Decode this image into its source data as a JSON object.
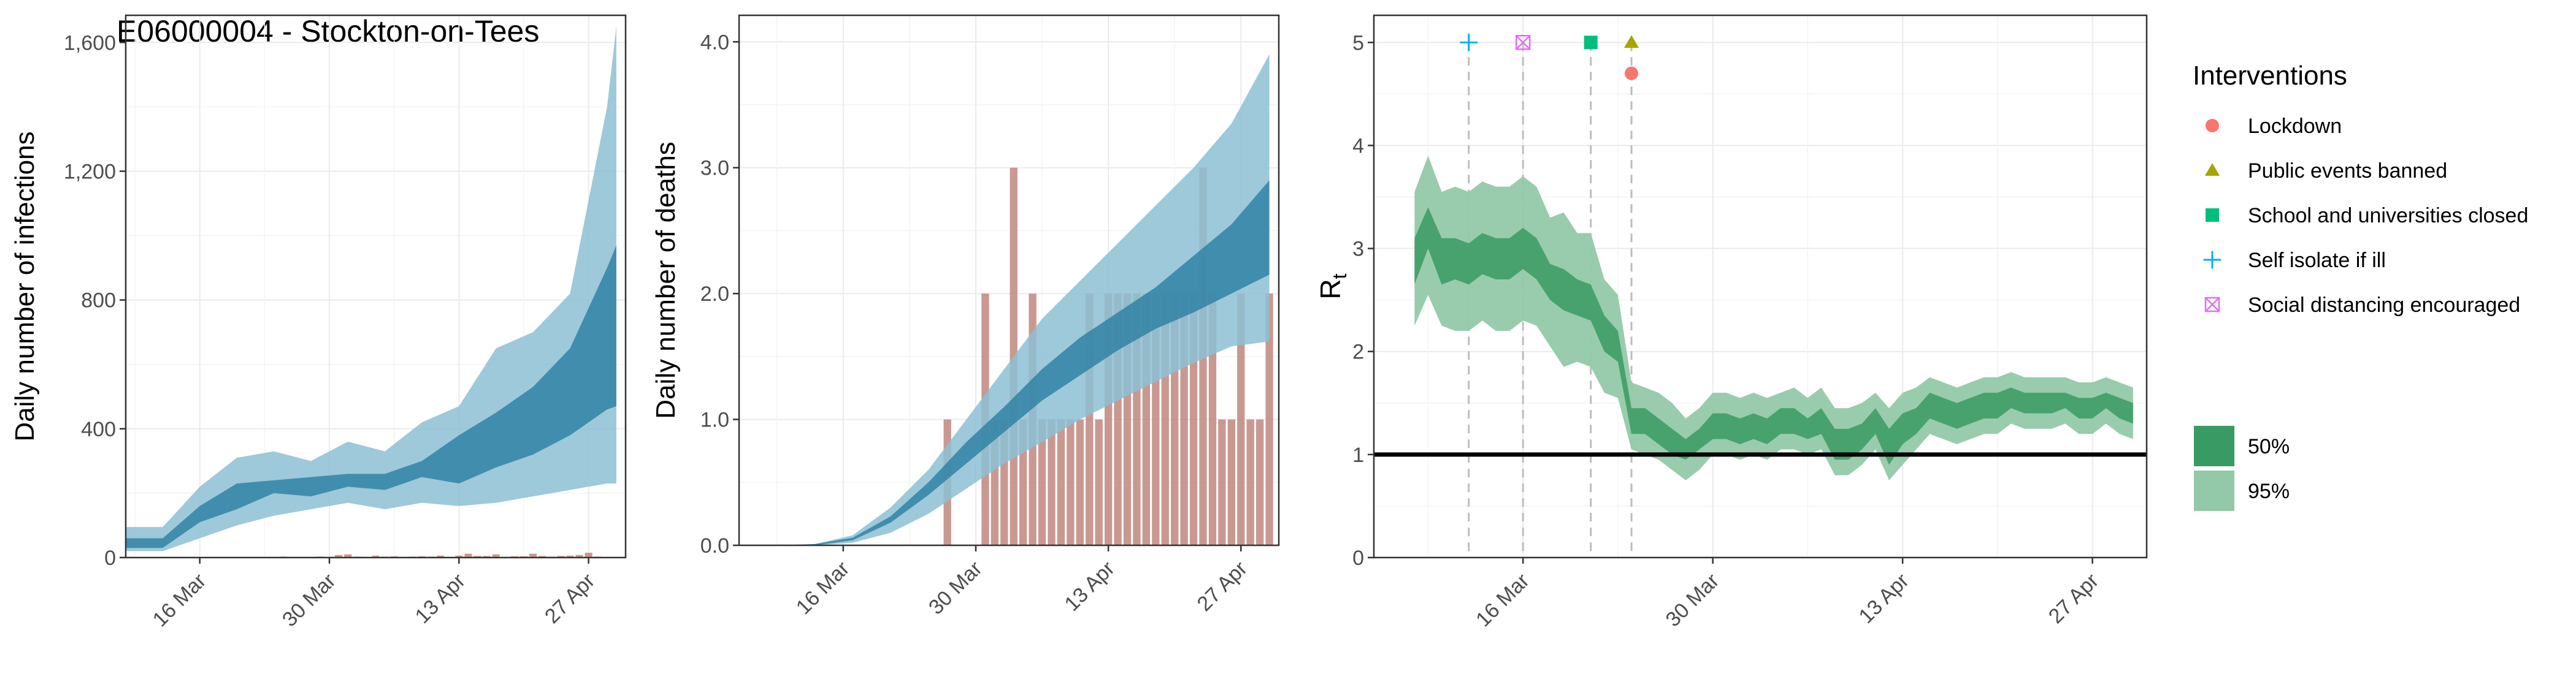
{
  "title": "E06000004 - Stockton-on-Tees",
  "colors": {
    "inner_band": "#2b7ea1",
    "outer_band": "#8cbfd3",
    "bars": "#c0877e",
    "rt_inner": "#3a9a63",
    "rt_outer": "#93c9a8",
    "lockdown": "#f8766d",
    "public_events": "#a3a500",
    "school": "#00bf7d",
    "self_isolate": "#00b0f6",
    "social_distancing": "#e76bf3"
  },
  "chart_data": [
    {
      "type": "area",
      "name": "infections",
      "ylabel": "Daily number of infections",
      "xlabel": "",
      "xlim": [
        "2020-03-08",
        "2020-05-01"
      ],
      "ylim": [
        0,
        1600
      ],
      "yticks": [
        0,
        400,
        800,
        1200,
        1600
      ],
      "ytick_labels": [
        "0",
        "400",
        "800",
        "1,200",
        "1,600"
      ],
      "xticks": [
        "2020-03-16",
        "2020-03-30",
        "2020-04-13",
        "2020-04-27"
      ],
      "xtick_labels": [
        "16 Mar",
        "30 Mar",
        "13 Apr",
        "27 Apr"
      ],
      "grid": true,
      "x": [
        "2020-03-08",
        "2020-03-12",
        "2020-03-16",
        "2020-03-20",
        "2020-03-24",
        "2020-03-28",
        "2020-04-01",
        "2020-04-05",
        "2020-04-09",
        "2020-04-13",
        "2020-04-17",
        "2020-04-21",
        "2020-04-25",
        "2020-04-29",
        "2020-04-30"
      ],
      "series": [
        {
          "band": "95%",
          "lower": [
            20,
            20,
            60,
            100,
            130,
            150,
            170,
            150,
            170,
            160,
            170,
            190,
            210,
            230,
            230
          ],
          "upper": [
            95,
            95,
            220,
            310,
            330,
            300,
            360,
            330,
            420,
            470,
            650,
            700,
            820,
            1400,
            1650
          ]
        },
        {
          "band": "50%",
          "lower": [
            30,
            30,
            110,
            150,
            200,
            190,
            220,
            210,
            250,
            230,
            280,
            320,
            380,
            460,
            470
          ],
          "upper": [
            60,
            60,
            160,
            230,
            240,
            250,
            260,
            260,
            300,
            380,
            450,
            530,
            650,
            900,
            970
          ]
        }
      ],
      "bars": {
        "x": [
          "2020-03-25",
          "2020-03-27",
          "2020-03-28",
          "2020-03-29",
          "2020-03-31",
          "2020-04-01",
          "2020-04-02",
          "2020-04-04",
          "2020-04-05",
          "2020-04-06",
          "2020-04-08",
          "2020-04-09",
          "2020-04-10",
          "2020-04-11",
          "2020-04-12",
          "2020-04-13",
          "2020-04-14",
          "2020-04-15",
          "2020-04-16",
          "2020-04-17",
          "2020-04-18",
          "2020-04-19",
          "2020-04-20",
          "2020-04-21",
          "2020-04-22",
          "2020-04-23",
          "2020-04-24",
          "2020-04-25",
          "2020-04-26",
          "2020-04-27",
          "2020-04-28",
          "2020-04-29"
        ],
        "values": [
          3,
          2,
          2,
          3,
          8,
          10,
          3,
          6,
          3,
          4,
          3,
          4,
          3,
          6,
          2,
          6,
          12,
          5,
          5,
          10,
          2,
          4,
          4,
          12,
          5,
          3,
          5,
          6,
          8,
          15,
          3,
          2
        ]
      }
    },
    {
      "type": "area",
      "name": "deaths",
      "ylabel": "Daily number of deaths",
      "xlabel": "",
      "xlim": [
        "2020-03-05",
        "2020-05-01"
      ],
      "ylim": [
        0,
        4
      ],
      "yticks": [
        0,
        1,
        2,
        3,
        4
      ],
      "ytick_labels": [
        "0.0",
        "1.0",
        "2.0",
        "3.0",
        "4.0"
      ],
      "xticks": [
        "2020-03-16",
        "2020-03-30",
        "2020-04-13",
        "2020-04-27"
      ],
      "xtick_labels": [
        "16 Mar",
        "30 Mar",
        "13 Apr",
        "27 Apr"
      ],
      "grid": true,
      "x": [
        "2020-03-09",
        "2020-03-13",
        "2020-03-17",
        "2020-03-21",
        "2020-03-25",
        "2020-03-29",
        "2020-04-02",
        "2020-04-06",
        "2020-04-10",
        "2020-04-14",
        "2020-04-18",
        "2020-04-22",
        "2020-04-26",
        "2020-04-30"
      ],
      "series": [
        {
          "band": "95%",
          "lower": [
            0,
            0,
            0.02,
            0.1,
            0.25,
            0.45,
            0.65,
            0.82,
            1.0,
            1.15,
            1.3,
            1.45,
            1.58,
            1.62
          ],
          "upper": [
            0,
            0.01,
            0.08,
            0.3,
            0.6,
            1.0,
            1.4,
            1.8,
            2.1,
            2.4,
            2.7,
            3.0,
            3.35,
            3.9
          ]
        },
        {
          "band": "50%",
          "lower": [
            0,
            0,
            0.04,
            0.18,
            0.4,
            0.65,
            0.9,
            1.15,
            1.35,
            1.55,
            1.72,
            1.85,
            2.0,
            2.15
          ],
          "upper": [
            0,
            0.01,
            0.06,
            0.23,
            0.5,
            0.82,
            1.1,
            1.4,
            1.65,
            1.85,
            2.05,
            2.3,
            2.55,
            2.9
          ]
        }
      ],
      "bars": {
        "x": [
          "2020-03-27",
          "2020-03-31",
          "2020-04-01",
          "2020-04-02",
          "2020-04-03",
          "2020-04-04",
          "2020-04-05",
          "2020-04-06",
          "2020-04-07",
          "2020-04-08",
          "2020-04-09",
          "2020-04-10",
          "2020-04-11",
          "2020-04-12",
          "2020-04-13",
          "2020-04-14",
          "2020-04-15",
          "2020-04-16",
          "2020-04-17",
          "2020-04-18",
          "2020-04-19",
          "2020-04-20",
          "2020-04-21",
          "2020-04-22",
          "2020-04-23",
          "2020-04-24",
          "2020-04-25",
          "2020-04-26",
          "2020-04-27",
          "2020-04-28",
          "2020-04-29",
          "2020-04-30"
        ],
        "values": [
          1,
          2,
          1,
          1,
          3,
          1,
          2,
          1,
          1,
          1,
          1,
          1,
          2,
          1,
          2,
          2,
          2,
          2,
          2,
          2,
          2,
          2,
          2,
          2,
          3,
          2,
          1,
          1,
          2,
          1,
          1,
          2
        ]
      }
    },
    {
      "type": "area",
      "name": "rt",
      "ylabel": "Rt",
      "xlabel": "",
      "xlim": [
        "2020-03-05",
        "2020-05-01"
      ],
      "ylim": [
        0,
        5
      ],
      "yticks": [
        0,
        1,
        2,
        3,
        4,
        5
      ],
      "ytick_labels": [
        "0",
        "1",
        "2",
        "3",
        "4",
        "5"
      ],
      "xticks": [
        "2020-03-16",
        "2020-03-30",
        "2020-04-13",
        "2020-04-27"
      ],
      "xtick_labels": [
        "16 Mar",
        "30 Mar",
        "13 Apr",
        "27 Apr"
      ],
      "grid": true,
      "reference_line": 1,
      "x": [
        "2020-03-08",
        "2020-03-09",
        "2020-03-10",
        "2020-03-11",
        "2020-03-12",
        "2020-03-13",
        "2020-03-14",
        "2020-03-15",
        "2020-03-16",
        "2020-03-17",
        "2020-03-18",
        "2020-03-19",
        "2020-03-20",
        "2020-03-21",
        "2020-03-22",
        "2020-03-23",
        "2020-03-24",
        "2020-03-25",
        "2020-03-26",
        "2020-03-27",
        "2020-03-28",
        "2020-03-29",
        "2020-03-30",
        "2020-03-31",
        "2020-04-01",
        "2020-04-02",
        "2020-04-03",
        "2020-04-04",
        "2020-04-05",
        "2020-04-06",
        "2020-04-07",
        "2020-04-08",
        "2020-04-09",
        "2020-04-10",
        "2020-04-11",
        "2020-04-12",
        "2020-04-13",
        "2020-04-14",
        "2020-04-15",
        "2020-04-16",
        "2020-04-17",
        "2020-04-18",
        "2020-04-19",
        "2020-04-20",
        "2020-04-21",
        "2020-04-22",
        "2020-04-23",
        "2020-04-24",
        "2020-04-25",
        "2020-04-26",
        "2020-04-27",
        "2020-04-28",
        "2020-04-29",
        "2020-04-30"
      ],
      "series": [
        {
          "band": "95%",
          "lower": [
            2.25,
            2.55,
            2.25,
            2.2,
            2.2,
            2.3,
            2.2,
            2.2,
            2.3,
            2.25,
            2.05,
            1.85,
            1.9,
            1.85,
            1.6,
            1.55,
            1.05,
            1.0,
            0.95,
            0.85,
            0.75,
            0.85,
            1.0,
            1.0,
            0.95,
            1.0,
            0.95,
            1.05,
            1.05,
            1.0,
            1.05,
            0.8,
            0.8,
            0.9,
            1.05,
            0.75,
            0.9,
            1.05,
            1.2,
            1.15,
            1.1,
            1.15,
            1.2,
            1.2,
            1.3,
            1.25,
            1.25,
            1.25,
            1.3,
            1.2,
            1.2,
            1.3,
            1.2,
            1.15
          ],
          "upper": [
            3.55,
            3.9,
            3.55,
            3.6,
            3.55,
            3.65,
            3.6,
            3.6,
            3.7,
            3.6,
            3.3,
            3.35,
            3.15,
            3.15,
            2.7,
            2.55,
            1.7,
            1.65,
            1.6,
            1.5,
            1.35,
            1.45,
            1.6,
            1.6,
            1.55,
            1.6,
            1.55,
            1.6,
            1.65,
            1.55,
            1.65,
            1.45,
            1.45,
            1.5,
            1.6,
            1.45,
            1.6,
            1.65,
            1.75,
            1.7,
            1.65,
            1.7,
            1.75,
            1.75,
            1.8,
            1.75,
            1.75,
            1.75,
            1.75,
            1.7,
            1.7,
            1.75,
            1.7,
            1.65
          ]
        },
        {
          "band": "50%",
          "lower": [
            2.65,
            3.0,
            2.65,
            2.7,
            2.65,
            2.75,
            2.7,
            2.7,
            2.8,
            2.7,
            2.5,
            2.4,
            2.35,
            2.3,
            2.0,
            1.9,
            1.2,
            1.2,
            1.1,
            1.0,
            0.95,
            1.05,
            1.15,
            1.15,
            1.1,
            1.15,
            1.1,
            1.2,
            1.2,
            1.15,
            1.2,
            0.95,
            0.95,
            1.05,
            1.2,
            0.9,
            1.1,
            1.2,
            1.35,
            1.3,
            1.25,
            1.3,
            1.35,
            1.35,
            1.45,
            1.4,
            1.4,
            1.4,
            1.45,
            1.35,
            1.35,
            1.45,
            1.35,
            1.3
          ],
          "upper": [
            3.1,
            3.4,
            3.1,
            3.1,
            3.05,
            3.15,
            3.1,
            3.1,
            3.2,
            3.1,
            2.85,
            2.8,
            2.7,
            2.65,
            2.35,
            2.2,
            1.45,
            1.45,
            1.35,
            1.25,
            1.15,
            1.25,
            1.4,
            1.4,
            1.35,
            1.4,
            1.35,
            1.45,
            1.45,
            1.35,
            1.45,
            1.25,
            1.25,
            1.3,
            1.45,
            1.25,
            1.4,
            1.45,
            1.6,
            1.55,
            1.5,
            1.55,
            1.6,
            1.6,
            1.65,
            1.6,
            1.6,
            1.6,
            1.6,
            1.55,
            1.55,
            1.6,
            1.55,
            1.5
          ]
        }
      ],
      "interventions": [
        {
          "key": "self_isolate",
          "date": "2020-03-12",
          "y": 5.0,
          "shape": "plus"
        },
        {
          "key": "social_distancing",
          "date": "2020-03-16",
          "y": 5.0,
          "shape": "boxx"
        },
        {
          "key": "school",
          "date": "2020-03-21",
          "y": 5.0,
          "shape": "square"
        },
        {
          "key": "public_events",
          "date": "2020-03-24",
          "y": 5.0,
          "shape": "triangle"
        },
        {
          "key": "lockdown",
          "date": "2020-03-24",
          "y": 4.7,
          "shape": "circle"
        }
      ]
    }
  ],
  "legend": {
    "interventions_title": "Interventions",
    "items": [
      {
        "key": "lockdown",
        "label": "Lockdown",
        "shape": "circle"
      },
      {
        "key": "public_events",
        "label": "Public events banned",
        "shape": "triangle"
      },
      {
        "key": "school",
        "label": "School and universities closed",
        "shape": "square"
      },
      {
        "key": "self_isolate",
        "label": "Self isolate if ill",
        "shape": "plus"
      },
      {
        "key": "social_distancing",
        "label": "Social distancing encouraged",
        "shape": "boxx"
      }
    ],
    "bands": [
      {
        "label": "50%",
        "color_key": "rt_inner"
      },
      {
        "label": "95%",
        "color_key": "rt_outer"
      }
    ]
  }
}
